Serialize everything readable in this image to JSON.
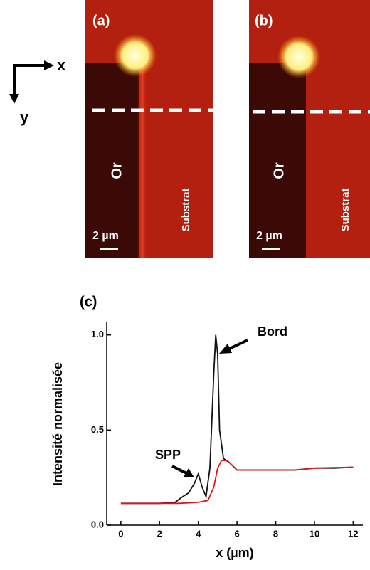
{
  "axes_icon": {
    "x": "x",
    "y": "y"
  },
  "panels": [
    {
      "label": "(a)",
      "material": "Or",
      "substrate": "Substrat",
      "scale": "2 µm"
    },
    {
      "label": "(b)",
      "material": "Or",
      "substrate": "Substrat",
      "scale": "2 µm"
    }
  ],
  "chart_data": {
    "type": "line",
    "title": "(c)",
    "x_label": "x (µm)",
    "y_label": "Intensité normalisée",
    "xlim": [
      -0.73,
      12.5
    ],
    "ylim": [
      0,
      1.07
    ],
    "xticks": [
      0,
      2,
      4,
      6,
      8,
      10,
      12
    ],
    "yticks": [
      {
        "value": 0,
        "label": "0.0"
      },
      0.5,
      {
        "value": 1,
        "label": "1.0"
      }
    ],
    "annotations": [
      "Bord",
      "SPP"
    ],
    "series": [
      {
        "color": "#111111",
        "x": [
          0,
          1,
          2,
          2.8,
          3.2,
          3.5,
          3.8,
          4.0,
          4.2,
          4.4,
          4.6,
          4.8,
          4.9,
          5.0,
          5.1,
          5.3,
          5.6,
          6,
          7,
          8,
          9,
          10,
          11,
          12
        ],
        "values": [
          0.115,
          0.115,
          0.115,
          0.12,
          0.15,
          0.17,
          0.22,
          0.27,
          0.2,
          0.15,
          0.3,
          0.8,
          1.0,
          0.9,
          0.5,
          0.35,
          0.33,
          0.29,
          0.29,
          0.29,
          0.29,
          0.3,
          0.3,
          0.305
        ]
      },
      {
        "color": "#e0141e",
        "x": [
          0,
          3,
          4,
          4.5,
          4.8,
          5.0,
          5.2,
          5.5,
          6,
          7,
          8,
          9,
          10,
          12
        ],
        "values": [
          0.115,
          0.115,
          0.12,
          0.13,
          0.2,
          0.3,
          0.34,
          0.34,
          0.29,
          0.29,
          0.29,
          0.29,
          0.3,
          0.305
        ]
      }
    ]
  }
}
